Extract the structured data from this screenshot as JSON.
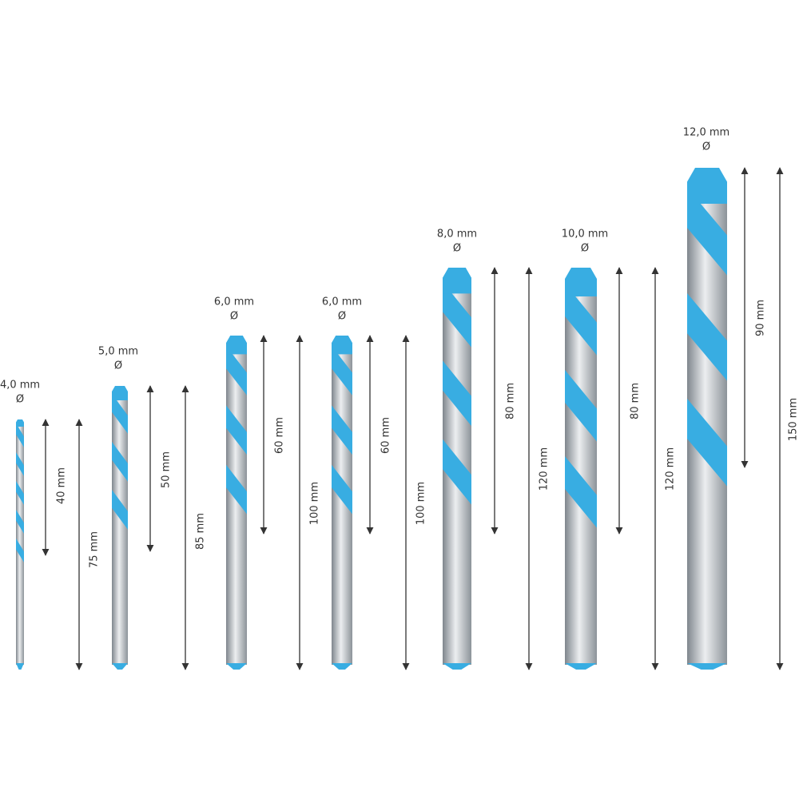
{
  "bits": [
    {
      "diameter": "4,0 mm",
      "symbol": "Ø",
      "flute_length": "40 mm",
      "total_length": "75 mm"
    },
    {
      "diameter": "5,0 mm",
      "symbol": "Ø",
      "flute_length": "50 mm",
      "total_length": "85 mm"
    },
    {
      "diameter": "6,0 mm",
      "symbol": "Ø",
      "flute_length": "60 mm",
      "total_length": "100 mm"
    },
    {
      "diameter": "6,0 mm",
      "symbol": "Ø",
      "flute_length": "60 mm",
      "total_length": "100 mm"
    },
    {
      "diameter": "8,0 mm",
      "symbol": "Ø",
      "flute_length": "80 mm",
      "total_length": "120 mm"
    },
    {
      "diameter": "10,0 mm",
      "symbol": "Ø",
      "flute_length": "80 mm",
      "total_length": "120 mm"
    },
    {
      "diameter": "12,0 mm",
      "symbol": "Ø",
      "flute_length": "90 mm",
      "total_length": "150 mm"
    }
  ]
}
